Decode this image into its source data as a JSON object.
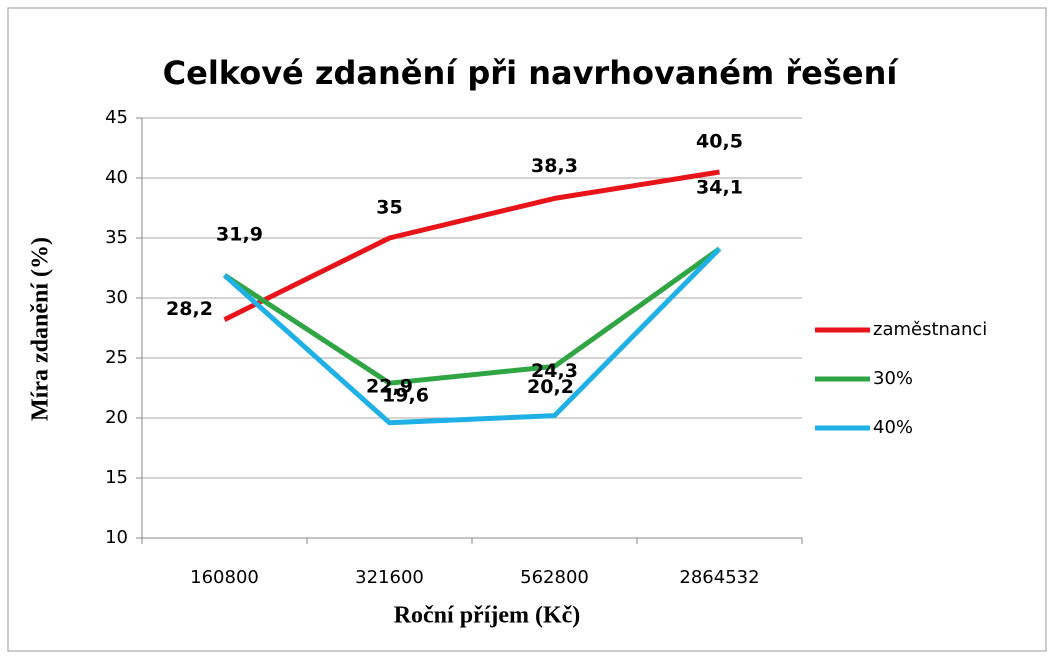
{
  "chart_data": {
    "type": "line",
    "title": "Celkové zdanění při navrhovaném řešení",
    "x_label": "Roční příjem (Kč)",
    "y_label": "Míra zdanění (%)",
    "categories": [
      "160800",
      "321600",
      "562800",
      "2864532"
    ],
    "series": [
      {
        "name": "zaměstnanci",
        "color": "#e8141a",
        "values": [
          28.2,
          35,
          38.3,
          40.5
        ],
        "value_labels": [
          "28,2",
          "35",
          "38,3",
          "40,5"
        ]
      },
      {
        "name": "30%",
        "color": "#2fa544",
        "values": [
          31.9,
          22.9,
          24.3,
          34.1
        ],
        "value_labels": [
          "31,9",
          "22,9",
          "24,3",
          "34,1"
        ]
      },
      {
        "name": "40%",
        "color": "#1fb0e6",
        "values": [
          31.9,
          19.6,
          20.2,
          34.1
        ],
        "value_labels": [
          null,
          "19,6",
          "20,2",
          null
        ]
      }
    ],
    "ylim": [
      10,
      45
    ],
    "yticks": [
      10,
      15,
      20,
      25,
      30,
      35,
      40,
      45
    ],
    "grid": true,
    "legend": "right"
  }
}
